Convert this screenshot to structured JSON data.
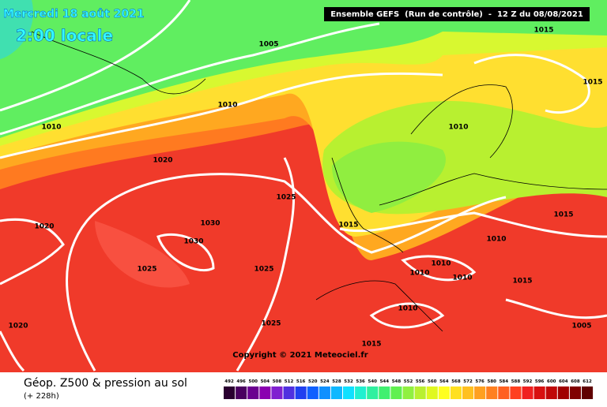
{
  "header": {
    "date": "Mercredi 18 août 2021",
    "local_time": "2:00 locale",
    "run": "Ensemble GEFS  (Run de contrôle)  -  12 Z du 08/08/2021"
  },
  "isobar_labels": [
    "1005",
    "1015",
    "1015",
    "1010",
    "1010",
    "1010",
    "1020",
    "1025",
    "1015",
    "1020",
    "1030",
    "1030",
    "1015",
    "1010",
    "1025",
    "1025",
    "1010",
    "1010",
    "1010",
    "1015",
    "1010",
    "1005",
    "1020",
    "1025",
    "1015"
  ],
  "copyright": "Copyright © 2021 Meteociel.fr",
  "footer": {
    "title": "Géop. Z500 & pression au sol",
    "lead": "(+ 228h)"
  },
  "scale": {
    "labels": [
      492,
      496,
      500,
      504,
      508,
      512,
      516,
      520,
      524,
      528,
      532,
      536,
      540,
      544,
      548,
      552,
      556,
      560,
      564,
      568,
      572,
      576,
      580,
      584,
      588,
      592,
      596,
      600,
      604,
      608,
      612
    ],
    "colors": [
      "#2a0030",
      "#4a0060",
      "#6a0090",
      "#8a00b0",
      "#8020d0",
      "#5030e0",
      "#2040f0",
      "#1060ff",
      "#1090ff",
      "#10b8ff",
      "#10e0ff",
      "#20f0d0",
      "#30f0a0",
      "#40f070",
      "#60f050",
      "#90f040",
      "#b8f030",
      "#e0f820",
      "#ffff20",
      "#ffe020",
      "#ffc020",
      "#ffa020",
      "#ff8020",
      "#ff6020",
      "#ff4020",
      "#f02020",
      "#d81010",
      "#c00808",
      "#a00000",
      "#800000",
      "#600000"
    ]
  }
}
